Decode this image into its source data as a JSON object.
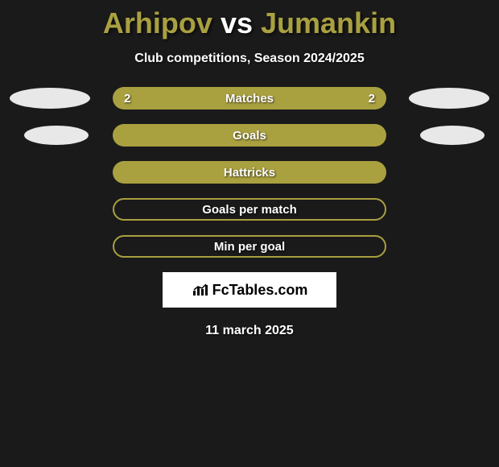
{
  "title": {
    "player1": "Arhipov",
    "vs": "vs",
    "player2": "Jumankin",
    "color1": "#a9a040",
    "color_vs": "#ffffff",
    "color2": "#a9a040"
  },
  "subtitle": "Club competitions, Season 2024/2025",
  "accent_color": "#a9a040",
  "ellipse_color": "#e8e8e8",
  "background_color": "#1a1a1a",
  "stats": [
    {
      "label": "Matches",
      "left_value": "2",
      "right_value": "2",
      "filled": true,
      "show_ellipse_left": true,
      "show_ellipse_right": true,
      "ellipse_size": "large"
    },
    {
      "label": "Goals",
      "left_value": "",
      "right_value": "",
      "filled": true,
      "show_ellipse_left": true,
      "show_ellipse_right": true,
      "ellipse_size": "small"
    },
    {
      "label": "Hattricks",
      "left_value": "",
      "right_value": "",
      "filled": true,
      "show_ellipse_left": false,
      "show_ellipse_right": false
    },
    {
      "label": "Goals per match",
      "left_value": "",
      "right_value": "",
      "filled": false,
      "show_ellipse_left": false,
      "show_ellipse_right": false
    },
    {
      "label": "Min per goal",
      "left_value": "",
      "right_value": "",
      "filled": false,
      "show_ellipse_left": false,
      "show_ellipse_right": false
    }
  ],
  "logo": {
    "text": "FcTables.com"
  },
  "date": "11 march 2025"
}
